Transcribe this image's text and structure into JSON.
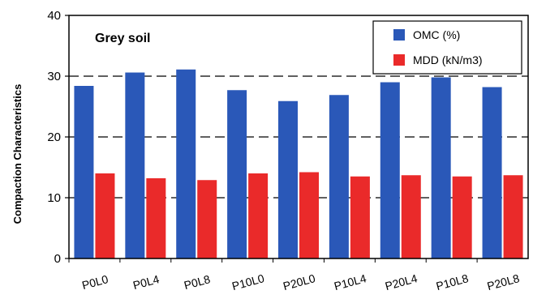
{
  "chart_data": {
    "type": "bar",
    "title": "Grey soil",
    "ylabel": "Compaction Characteristics",
    "xlabel": "",
    "ylim": [
      0,
      40
    ],
    "yticks": [
      0,
      10,
      20,
      30,
      40
    ],
    "grid": "dashed horizontal at 10, 20, 30",
    "legend_position": "top-right",
    "categories": [
      "P0L0",
      "P0L4",
      "P0L8",
      "P10L0",
      "P20L0",
      "P10L4",
      "P20L4",
      "P10L8",
      "P20L8"
    ],
    "series": [
      {
        "name": "OMC (%)",
        "color": "#2a58b8",
        "values": [
          28.4,
          30.6,
          31.1,
          27.7,
          25.9,
          26.9,
          29.0,
          29.8,
          28.2
        ]
      },
      {
        "name": "MDD (kN/m3)",
        "color": "#ea2a2a",
        "values": [
          14.0,
          13.2,
          12.9,
          14.0,
          14.2,
          13.5,
          13.7,
          13.5,
          13.7
        ]
      }
    ]
  }
}
